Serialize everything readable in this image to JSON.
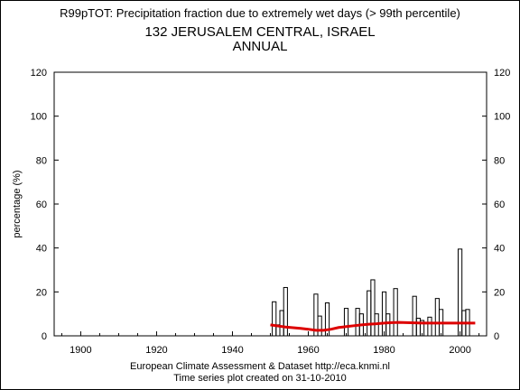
{
  "header": {
    "title": "R99pTOT: Precipitation fraction due to extremely wet days (> 99th percentile)",
    "station": "132 JERUSALEM CENTRAL, ISRAEL",
    "period": "ANNUAL"
  },
  "footer": {
    "line1": "European Climate Assessment & Dataset  http://eca.knmi.nl",
    "line2": "Time series plot created on 31-10-2010"
  },
  "chart_data": {
    "type": "bar",
    "ylabel": "percentage (%)",
    "xlabel": "",
    "xlim": [
      1893,
      2007
    ],
    "ylim": [
      0,
      120
    ],
    "xticks": [
      1900,
      1920,
      1940,
      1960,
      1980,
      2000
    ],
    "yticks": [
      0,
      20,
      40,
      60,
      80,
      100,
      120
    ],
    "grid": false,
    "bar_color": "#000000",
    "trend_color": "#dd0000",
    "series": [
      {
        "kind": "bar",
        "x": [
          1951,
          1952,
          1953,
          1954,
          1955,
          1956,
          1957,
          1958,
          1959,
          1960,
          1961,
          1962,
          1963,
          1964,
          1965,
          1966,
          1967,
          1968,
          1969,
          1970,
          1971,
          1972,
          1973,
          1974,
          1975,
          1976,
          1977,
          1978,
          1979,
          1980,
          1981,
          1982,
          1983,
          1984,
          1985,
          1986,
          1987,
          1988,
          1989,
          1990,
          1991,
          1992,
          1993,
          1994,
          1995,
          1996,
          1997,
          1998,
          1999,
          2000,
          2001,
          2002,
          2003
        ],
        "values": [
          15.5,
          5,
          11.5,
          22,
          0,
          0,
          0,
          0,
          0,
          0,
          0,
          19,
          9,
          0,
          15,
          0,
          0,
          0,
          0,
          12.5,
          0,
          0,
          12.5,
          10,
          0,
          20.5,
          25.5,
          10,
          0,
          20,
          10,
          0,
          21.5,
          0,
          0,
          0,
          0,
          18,
          8,
          7,
          0,
          8.5,
          0,
          17,
          12,
          0,
          0,
          0,
          0,
          39.5,
          11.5,
          12,
          0
        ]
      },
      {
        "kind": "line",
        "x": [
          1950,
          1952,
          1954,
          1956,
          1958,
          1960,
          1962,
          1964,
          1966,
          1968,
          1970,
          1972,
          1974,
          1976,
          1978,
          1980,
          1982,
          1984,
          1986,
          1988,
          1990,
          1992,
          1994,
          1996,
          1998,
          2000,
          2002,
          2004
        ],
        "values": [
          5,
          4.5,
          4,
          3.7,
          3.4,
          3,
          2.5,
          2.5,
          3,
          3.8,
          4.2,
          4.6,
          5,
          5.3,
          5.5,
          5.8,
          6.0,
          6.1,
          6.0,
          5.9,
          5.8,
          5.8,
          5.8,
          5.8,
          5.8,
          5.8,
          5.8,
          5.8
        ]
      }
    ]
  }
}
